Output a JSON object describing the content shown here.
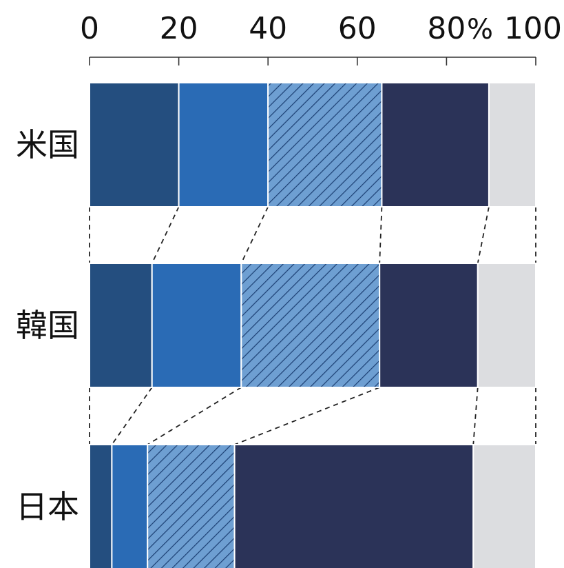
{
  "chart_data": {
    "type": "bar",
    "orientation": "horizontal",
    "stacked": true,
    "normalized": true,
    "xlim": [
      0,
      100
    ],
    "unit": "%",
    "x_ticks": [
      0,
      20,
      40,
      60,
      80,
      100
    ],
    "categories": [
      "米国",
      "韓国",
      "日本"
    ],
    "series": [
      {
        "values": [
          20,
          14,
          5
        ],
        "color": "#244e7f",
        "pattern": "none"
      },
      {
        "values": [
          20,
          20,
          8
        ],
        "color": "#2a6bb5",
        "pattern": "none"
      },
      {
        "values": [
          25.5,
          31,
          19.5
        ],
        "color": "#6e9fd2",
        "pattern": "diagonal-hatch"
      },
      {
        "values": [
          24,
          22,
          53.5
        ],
        "color": "#2b3358",
        "pattern": "none"
      },
      {
        "values": [
          10.5,
          13,
          14
        ],
        "color": "#dcdde0",
        "pattern": "none"
      }
    ],
    "connectors": "dashed",
    "grid": false,
    "legend": "none"
  }
}
